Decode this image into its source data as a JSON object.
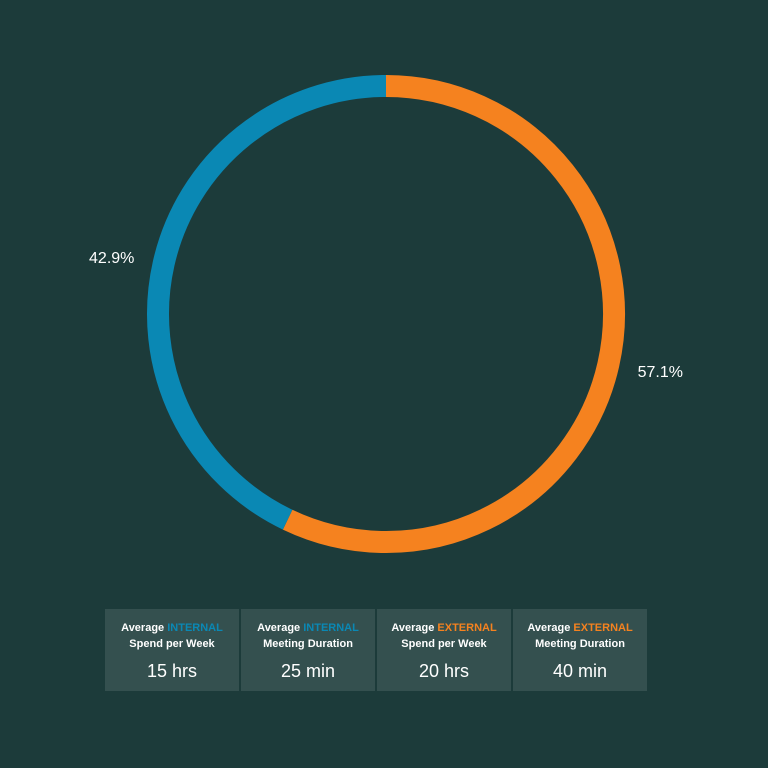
{
  "colors": {
    "background": "#1c3b3a",
    "internal": "#0a88b4",
    "external": "#f5821f",
    "card_bg": "#34504f",
    "text": "#ffffff"
  },
  "chart_data": {
    "type": "pie",
    "donut": true,
    "slices": [
      {
        "label": "57.1%",
        "value": 57.1,
        "color": "#f5821f"
      },
      {
        "label": "42.9%",
        "value": 42.9,
        "color": "#0a88b4"
      }
    ],
    "start_angle": "top",
    "direction": "clockwise",
    "legend": "none"
  },
  "cards": [
    {
      "prefix": "Average ",
      "highlight": "INTERNAL",
      "highlight_color": "#0a88b4",
      "line2": "Spend per Week",
      "value": "15 hrs"
    },
    {
      "prefix": "Average ",
      "highlight": "INTERNAL",
      "highlight_color": "#0a88b4",
      "line2": "Meeting Duration",
      "value": "25 min"
    },
    {
      "prefix": "Average ",
      "highlight": "EXTERNAL",
      "highlight_color": "#f5821f",
      "line2": "Spend per Week",
      "value": "20 hrs"
    },
    {
      "prefix": "Average ",
      "highlight": "EXTERNAL",
      "highlight_color": "#f5821f",
      "line2": "Meeting Duration",
      "value": "40 min"
    }
  ]
}
